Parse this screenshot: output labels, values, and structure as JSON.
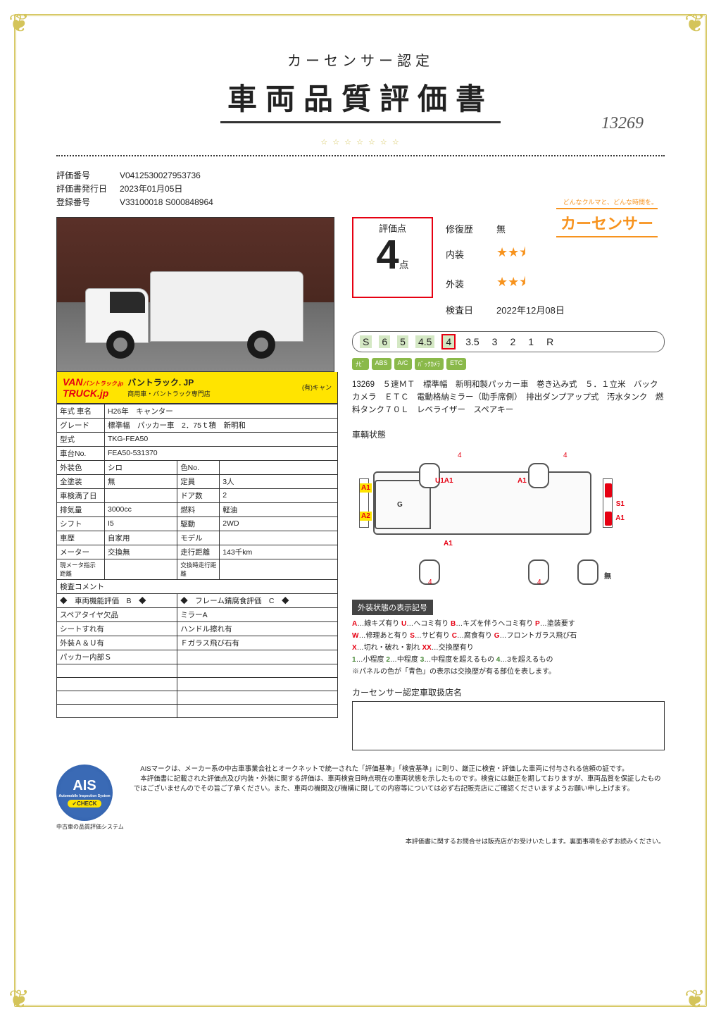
{
  "title": {
    "sub": "カーセンサー認定",
    "main": "車両品質評価書",
    "handwritten": "13269"
  },
  "brand": {
    "tagline": "どんなクルマと、どんな時間を。",
    "name": "カーセンサー"
  },
  "header": {
    "eval_no_label": "評価番号",
    "eval_no": "V0412530027953736",
    "date_label": "評価書発行日",
    "date": "2023年01月05日",
    "reg_label": "登録番号",
    "reg_no": "V33100018 S000848964"
  },
  "banner": {
    "logo1": "VAN",
    "logo2": "TRUCK.jp",
    "text1": "バントラック. JP",
    "text2": "商用車・バントラック専門店",
    "sub": "バントラック.jp",
    "tail": "(有)キャン"
  },
  "spec": {
    "rows": [
      {
        "l1": "年式 車名",
        "v1": "H26年　キャンター",
        "span": 3
      },
      {
        "l1": "グレード",
        "v1": "標準幅　パッカー車　2．75ｔ積　新明和",
        "span": 3
      },
      {
        "l1": "型式",
        "v1": "TKG-FEA50",
        "span": 3
      },
      {
        "l1": "車台No.",
        "v1": "FEA50-531370",
        "span": 3
      },
      {
        "l1": "外装色",
        "v1": "シロ",
        "l2": "色No.",
        "v2": ""
      },
      {
        "l1": "全塗装",
        "v1": "無",
        "l2": "定員",
        "v2": "3人"
      },
      {
        "l1": "車検満了日",
        "v1": "",
        "l2": "ドア数",
        "v2": "2"
      },
      {
        "l1": "排気量",
        "v1": "3000cc",
        "l2": "燃料",
        "v2": "軽油"
      },
      {
        "l1": "シフト",
        "v1": "I5",
        "l2": "駆動",
        "v2": "2WD"
      },
      {
        "l1": "車歴",
        "v1": "自家用",
        "l2": "モデル",
        "v2": ""
      },
      {
        "l1": "メーター",
        "v1": "交換無",
        "l2": "走行距離",
        "v2": "143千km"
      },
      {
        "l1": "現メータ指示距離",
        "v1": "",
        "l2": "交換時走行距離",
        "v2": "",
        "small": true
      }
    ],
    "comment_label": "検査コメント",
    "eval_headers": {
      "left": "◆　車両機能評価　B　◆",
      "right": "◆　フレーム錆腐食評価　C　◆"
    },
    "eval_rows": [
      {
        "l": "スペアタイヤ欠品",
        "r": "ミラーA"
      },
      {
        "l": "シートすれ有",
        "r": "ハンドル擦れ有"
      },
      {
        "l": "外装Ａ＆Ｕ有",
        "r": "Ｆガラス飛び石有"
      },
      {
        "l": "パッカー内部Ｓ",
        "r": ""
      },
      {
        "l": "",
        "r": ""
      },
      {
        "l": "",
        "r": ""
      },
      {
        "l": "",
        "r": ""
      },
      {
        "l": "",
        "r": ""
      }
    ]
  },
  "score": {
    "label": "評価点",
    "value": "4",
    "suffix": "点",
    "details": [
      {
        "label": "修復歴",
        "value": "無"
      },
      {
        "label": "内装",
        "stars": 2.5
      },
      {
        "label": "外装",
        "stars": 2.5
      },
      {
        "label": "検査日",
        "value": "2022年12月08日"
      }
    ]
  },
  "scale": [
    "S",
    "6",
    "5",
    "4.5",
    "4",
    "3.5",
    "3",
    "2",
    "1",
    "R"
  ],
  "scale_highlighted_index": 4,
  "scale_shaded_max_index": 4,
  "features": [
    "ﾅﾋﾞ",
    "ABS",
    "A/C",
    "ﾊﾞｯｸｶﾒﾗ",
    "ETC"
  ],
  "description": "13269　５速ＭＴ　標準幅　新明和製パッカー車　巻き込み式　５．１立米　バックカメラ　ＥＴＣ　電動格納ミラー（助手席側）　排出ダンプアップ式　汚水タンク　燃料タンク７０Ｌ　レベライザー　スペアキー",
  "diagram": {
    "title": "車輌状態",
    "marks": {
      "top_num1": "4",
      "top_num2": "4",
      "u1a1": "U1A1",
      "a1_top": "A1",
      "a1_left": "A1",
      "g": "G",
      "s1": "S1",
      "a2": "A2",
      "a1_right": "A1",
      "a1_bottom": "A1",
      "bot_num1": "4",
      "bot_num2": "4",
      "mu": "無"
    }
  },
  "legend": {
    "header": "外装状態の表示記号",
    "lines": [
      {
        "parts": [
          {
            "c": "r",
            "t": "A"
          },
          {
            "t": "…線キズ有り "
          },
          {
            "c": "r",
            "t": "U"
          },
          {
            "t": "…ヘコミ有り "
          },
          {
            "c": "r",
            "t": "B"
          },
          {
            "t": "…キズを伴うヘコミ有り "
          },
          {
            "c": "r",
            "t": "P"
          },
          {
            "t": "…塗装要す"
          }
        ]
      },
      {
        "parts": [
          {
            "c": "r",
            "t": "W"
          },
          {
            "t": "…修理あと有り "
          },
          {
            "c": "r",
            "t": "S"
          },
          {
            "t": "…サビ有り "
          },
          {
            "c": "r",
            "t": "C"
          },
          {
            "t": "…腐食有り "
          },
          {
            "c": "r",
            "t": "G"
          },
          {
            "t": "…フロントガラス飛び石"
          }
        ]
      },
      {
        "parts": [
          {
            "c": "r",
            "t": "X"
          },
          {
            "t": "…切れ・破れ・割れ "
          },
          {
            "c": "r",
            "t": "XX"
          },
          {
            "t": "…交換歴有り"
          }
        ]
      },
      {
        "parts": [
          {
            "c": "g",
            "t": "1"
          },
          {
            "t": "…小程度 "
          },
          {
            "c": "g",
            "t": "2"
          },
          {
            "t": "…中程度 "
          },
          {
            "c": "g",
            "t": "3"
          },
          {
            "t": "…中程度を超えるもの "
          },
          {
            "c": "g",
            "t": "4"
          },
          {
            "t": "…3を超えるもの"
          }
        ]
      },
      {
        "parts": [
          {
            "t": "※パネルの色が「青色」の表示は交換歴が有る部位を表します。"
          }
        ]
      }
    ]
  },
  "dealer": {
    "title": "カーセンサー認定車取扱店名"
  },
  "ais": {
    "text": "AIS",
    "check": "✓CHECK",
    "sub": "中古車の品質評価システム",
    "tiny": "Automobile Inspection System",
    "desc": "　AISマークは、メーカー系の中古車事業会社とオークネットで統一された「評価基準」「検査基準」に則り、厳正に検査・評価した車両に付与される信頼の証です。\n　本評価書に記載された評価点及び内装・外装に関する評価は、車両検査日時点現在の車両状態を示したものです。検査には厳正を期しておりますが、車両品質を保証したものではございませんのでその旨ご了承ください。また、車両の機関及び機構に関しての内容等については必ず右記販売店にご確認くださいますようお願い申し上げます。"
  },
  "footnote": "本評価書に関するお問合せは販売店がお受けいたします。裏面事項を必ずお読みください。",
  "colors": {
    "accent_red": "#e60012",
    "accent_orange": "#f7931e",
    "gold": "#d4c45a",
    "yellow": "#ffe400"
  }
}
